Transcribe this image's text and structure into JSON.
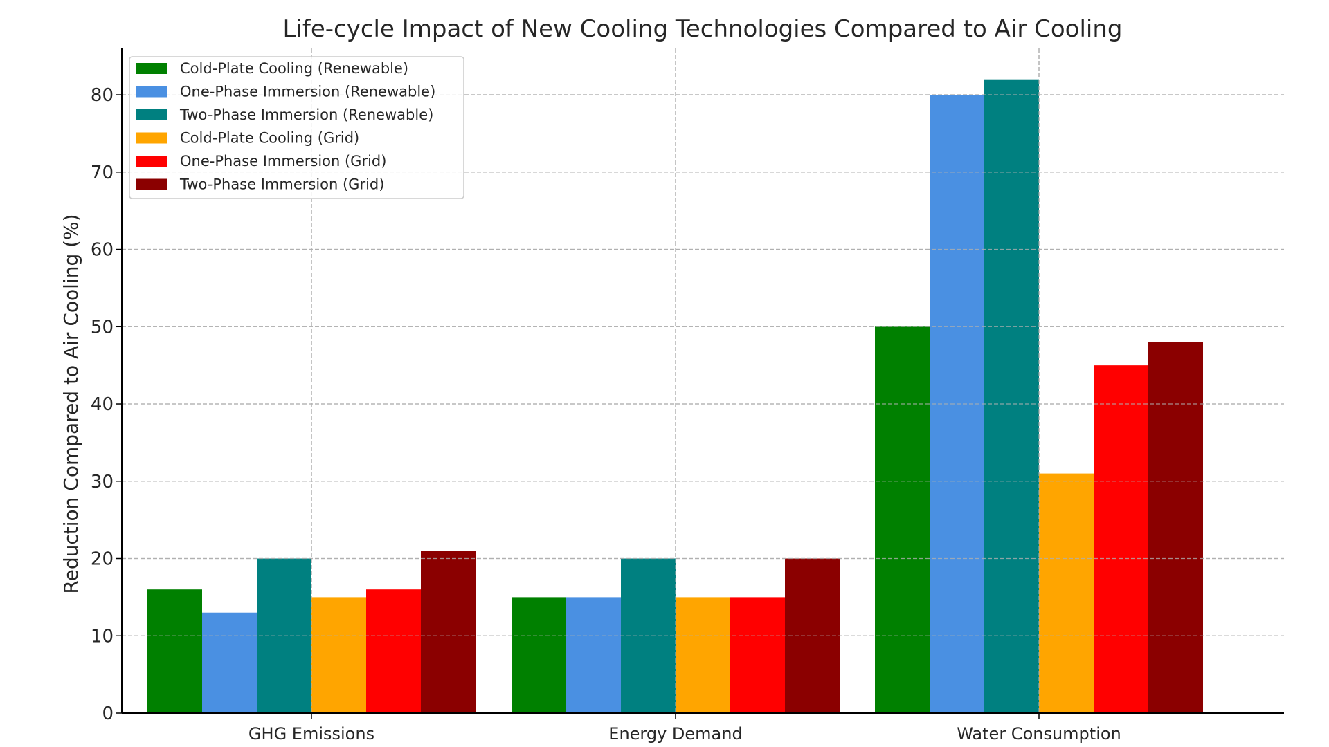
{
  "chart_data": {
    "type": "bar",
    "title": "Life-cycle Impact of New Cooling Technologies Compared to Air Cooling",
    "xlabel": "",
    "ylabel": "Reduction Compared to Air Cooling (%)",
    "ylim": [
      0,
      86
    ],
    "yticks": [
      0,
      10,
      20,
      30,
      40,
      50,
      60,
      70,
      80
    ],
    "grid": true,
    "legend_position": "top-left",
    "categories": [
      "GHG Emissions",
      "Energy Demand",
      "Water Consumption"
    ],
    "series": [
      {
        "name": "Cold-Plate Cooling (Renewable)",
        "color": "#008000",
        "values": [
          16,
          15,
          50
        ]
      },
      {
        "name": "One-Phase Immersion (Renewable)",
        "color": "#4a90e2",
        "values": [
          13,
          15,
          80
        ]
      },
      {
        "name": "Two-Phase Immersion (Renewable)",
        "color": "#008080",
        "values": [
          20,
          20,
          82
        ]
      },
      {
        "name": "Cold-Plate Cooling (Grid)",
        "color": "#ffa500",
        "values": [
          15,
          15,
          31
        ]
      },
      {
        "name": "One-Phase Immersion (Grid)",
        "color": "#ff0000",
        "values": [
          16,
          15,
          45
        ]
      },
      {
        "name": "Two-Phase Immersion (Grid)",
        "color": "#8b0000",
        "values": [
          21,
          20,
          48
        ]
      }
    ]
  }
}
